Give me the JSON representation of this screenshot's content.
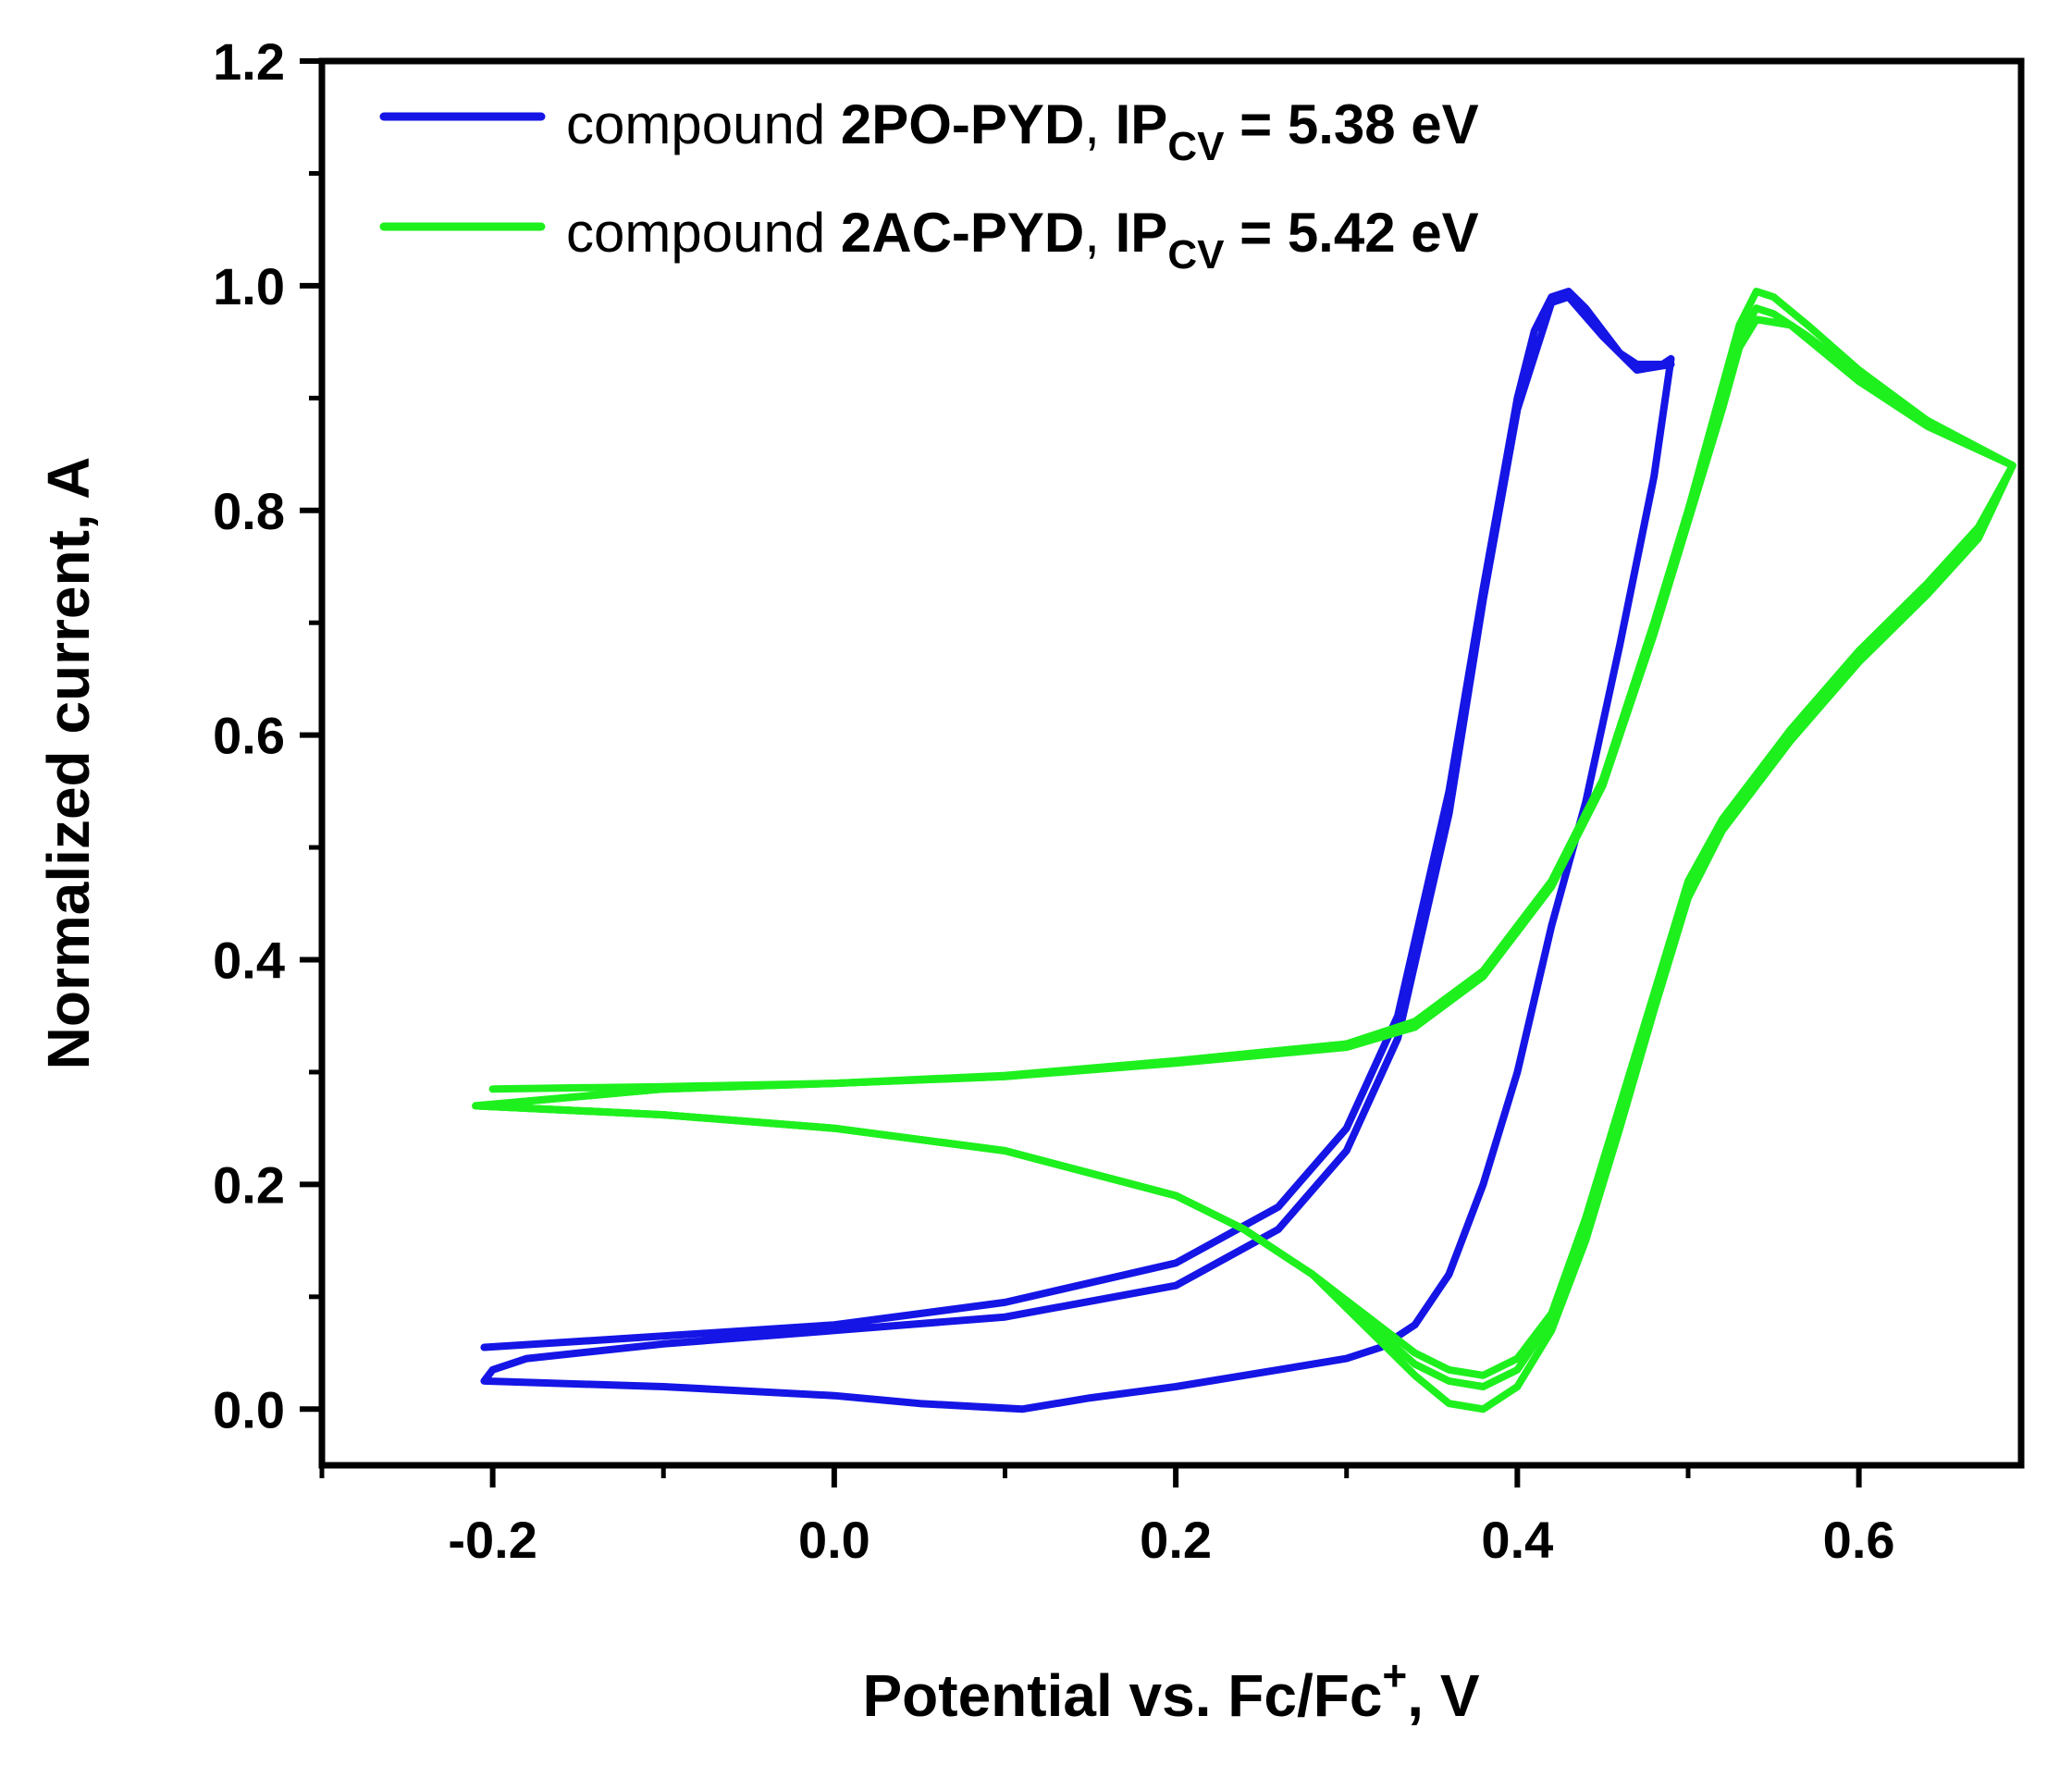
{
  "chart_data": {
    "type": "line",
    "title": "",
    "xlabel": {
      "main": "Potential vs. Fc/Fc",
      "sup": "+",
      "tail": ", V"
    },
    "ylabel": "Normalized current, A",
    "xlim": [
      -0.3,
      0.695
    ],
    "ylim": [
      -0.05,
      1.2
    ],
    "xticks": [
      -0.2,
      0.0,
      0.2,
      0.4,
      0.6
    ],
    "xtick_labels": [
      "-0.2",
      "0.0",
      "0.2",
      "0.4",
      "0.6"
    ],
    "yticks": [
      0.0,
      0.2,
      0.4,
      0.6,
      0.8,
      1.0,
      1.2
    ],
    "ytick_labels": [
      "0.0",
      "0.2",
      "0.4",
      "0.6",
      "0.8",
      "1.0",
      "1.2"
    ],
    "grid": false,
    "legend_position": "top-left",
    "series": [
      {
        "name": "compound 2PO-PYD, IPCV = 5.38 eV",
        "legend": {
          "prefix": "compound ",
          "compound": "2PO-PYD",
          "sep": ", ",
          "ip": "IP",
          "ip_sub": "CV",
          "value": " = 5.38 eV"
        },
        "color": "#1515e6",
        "cycles": [
          [
            [
              -0.205,
              0.055
            ],
            [
              -0.1,
              0.065
            ],
            [
              0.0,
              0.075
            ],
            [
              0.1,
              0.095
            ],
            [
              0.2,
              0.13
            ],
            [
              0.26,
              0.18
            ],
            [
              0.3,
              0.25
            ],
            [
              0.33,
              0.35
            ],
            [
              0.36,
              0.55
            ],
            [
              0.38,
              0.73
            ],
            [
              0.4,
              0.9
            ],
            [
              0.41,
              0.96
            ],
            [
              0.42,
              0.99
            ],
            [
              0.43,
              0.995
            ],
            [
              0.44,
              0.98
            ],
            [
              0.45,
              0.96
            ],
            [
              0.46,
              0.94
            ],
            [
              0.47,
              0.93
            ],
            [
              0.485,
              0.93
            ],
            [
              0.49,
              0.935
            ],
            [
              0.48,
              0.83
            ],
            [
              0.46,
              0.68
            ],
            [
              0.44,
              0.54
            ],
            [
              0.42,
              0.43
            ],
            [
              0.4,
              0.3
            ],
            [
              0.38,
              0.2
            ],
            [
              0.36,
              0.12
            ],
            [
              0.34,
              0.075
            ],
            [
              0.32,
              0.055
            ],
            [
              0.3,
              0.045
            ],
            [
              0.26,
              0.035
            ],
            [
              0.2,
              0.02
            ],
            [
              0.15,
              0.01
            ],
            [
              0.11,
              0.0
            ],
            [
              0.05,
              0.005
            ],
            [
              0.0,
              0.012
            ],
            [
              -0.1,
              0.02
            ],
            [
              -0.205,
              0.025
            ],
            [
              -0.2,
              0.035
            ],
            [
              -0.18,
              0.045
            ],
            [
              -0.1,
              0.058
            ],
            [
              0.0,
              0.07
            ],
            [
              0.1,
              0.082
            ],
            [
              0.2,
              0.11
            ],
            [
              0.26,
              0.16
            ],
            [
              0.3,
              0.23
            ],
            [
              0.33,
              0.33
            ],
            [
              0.36,
              0.53
            ],
            [
              0.38,
              0.72
            ],
            [
              0.4,
              0.89
            ],
            [
              0.42,
              0.985
            ],
            [
              0.43,
              0.99
            ],
            [
              0.45,
              0.955
            ],
            [
              0.47,
              0.925
            ],
            [
              0.49,
              0.93
            ]
          ]
        ]
      },
      {
        "name": "compound 2AC-PYD, IPCV = 5.42 eV",
        "legend": {
          "prefix": "compound ",
          "compound": "2AC-PYD",
          "sep": ", ",
          "ip": "IP",
          "ip_sub": "CV",
          "value": " = 5.42 eV"
        },
        "color": "#1ef01e",
        "cycles": [
          [
            [
              -0.2,
              0.285
            ],
            [
              -0.1,
              0.287
            ],
            [
              0.0,
              0.29
            ],
            [
              0.1,
              0.297
            ],
            [
              0.2,
              0.31
            ],
            [
              0.3,
              0.325
            ],
            [
              0.34,
              0.345
            ],
            [
              0.38,
              0.39
            ],
            [
              0.42,
              0.47
            ],
            [
              0.45,
              0.56
            ],
            [
              0.48,
              0.7
            ],
            [
              0.5,
              0.8
            ],
            [
              0.52,
              0.9
            ],
            [
              0.53,
              0.955
            ],
            [
              0.54,
              0.98
            ],
            [
              0.55,
              0.975
            ],
            [
              0.57,
              0.955
            ],
            [
              0.6,
              0.92
            ],
            [
              0.64,
              0.88
            ],
            [
              0.67,
              0.855
            ],
            [
              0.69,
              0.84
            ],
            [
              0.67,
              0.78
            ],
            [
              0.64,
              0.73
            ],
            [
              0.6,
              0.67
            ],
            [
              0.56,
              0.6
            ],
            [
              0.52,
              0.52
            ],
            [
              0.5,
              0.46
            ],
            [
              0.48,
              0.36
            ],
            [
              0.46,
              0.26
            ],
            [
              0.44,
              0.16
            ],
            [
              0.42,
              0.08
            ],
            [
              0.4,
              0.035
            ],
            [
              0.38,
              0.02
            ],
            [
              0.36,
              0.025
            ],
            [
              0.34,
              0.04
            ],
            [
              0.31,
              0.08
            ],
            [
              0.28,
              0.12
            ],
            [
              0.24,
              0.16
            ],
            [
              0.2,
              0.19
            ],
            [
              0.1,
              0.23
            ],
            [
              0.0,
              0.25
            ],
            [
              -0.1,
              0.262
            ],
            [
              -0.21,
              0.27
            ]
          ],
          [
            [
              -0.21,
              0.27
            ],
            [
              -0.1,
              0.285
            ],
            [
              0.0,
              0.29
            ],
            [
              0.1,
              0.296
            ],
            [
              0.2,
              0.308
            ],
            [
              0.3,
              0.322
            ],
            [
              0.34,
              0.34
            ],
            [
              0.38,
              0.385
            ],
            [
              0.42,
              0.465
            ],
            [
              0.45,
              0.555
            ],
            [
              0.48,
              0.69
            ],
            [
              0.5,
              0.79
            ],
            [
              0.52,
              0.89
            ],
            [
              0.53,
              0.945
            ],
            [
              0.54,
              0.97
            ],
            [
              0.56,
              0.965
            ],
            [
              0.6,
              0.915
            ],
            [
              0.64,
              0.875
            ],
            [
              0.69,
              0.84
            ],
            [
              0.67,
              0.785
            ],
            [
              0.64,
              0.735
            ],
            [
              0.6,
              0.675
            ],
            [
              0.56,
              0.605
            ],
            [
              0.52,
              0.525
            ],
            [
              0.5,
              0.47
            ],
            [
              0.48,
              0.37
            ],
            [
              0.46,
              0.27
            ],
            [
              0.44,
              0.17
            ],
            [
              0.42,
              0.085
            ],
            [
              0.4,
              0.045
            ],
            [
              0.38,
              0.03
            ],
            [
              0.36,
              0.035
            ],
            [
              0.34,
              0.05
            ],
            [
              0.31,
              0.085
            ],
            [
              0.28,
              0.12
            ],
            [
              0.24,
              0.16
            ],
            [
              0.2,
              0.19
            ],
            [
              0.1,
              0.23
            ],
            [
              0.0,
              0.25
            ],
            [
              -0.1,
              0.262
            ],
            [
              -0.21,
              0.27
            ]
          ],
          [
            [
              -0.21,
              0.27
            ],
            [
              -0.1,
              0.285
            ],
            [
              0.0,
              0.29
            ],
            [
              0.1,
              0.296
            ],
            [
              0.2,
              0.31
            ],
            [
              0.3,
              0.325
            ],
            [
              0.34,
              0.345
            ],
            [
              0.38,
              0.39
            ],
            [
              0.42,
              0.47
            ],
            [
              0.45,
              0.56
            ],
            [
              0.48,
              0.7
            ],
            [
              0.5,
              0.8
            ],
            [
              0.52,
              0.91
            ],
            [
              0.53,
              0.965
            ],
            [
              0.54,
              0.995
            ],
            [
              0.55,
              0.99
            ],
            [
              0.57,
              0.965
            ],
            [
              0.6,
              0.925
            ],
            [
              0.64,
              0.88
            ],
            [
              0.69,
              0.84
            ],
            [
              0.67,
              0.775
            ],
            [
              0.64,
              0.725
            ],
            [
              0.6,
              0.665
            ],
            [
              0.56,
              0.595
            ],
            [
              0.52,
              0.515
            ],
            [
              0.5,
              0.455
            ],
            [
              0.48,
              0.355
            ],
            [
              0.46,
              0.25
            ],
            [
              0.44,
              0.15
            ],
            [
              0.42,
              0.07
            ],
            [
              0.4,
              0.02
            ],
            [
              0.38,
              0.0
            ],
            [
              0.36,
              0.005
            ],
            [
              0.34,
              0.03
            ],
            [
              0.31,
              0.075
            ],
            [
              0.28,
              0.12
            ],
            [
              0.24,
              0.16
            ],
            [
              0.2,
              0.19
            ],
            [
              0.1,
              0.23
            ],
            [
              0.0,
              0.25
            ],
            [
              -0.1,
              0.262
            ],
            [
              -0.21,
              0.27
            ]
          ]
        ]
      }
    ]
  }
}
